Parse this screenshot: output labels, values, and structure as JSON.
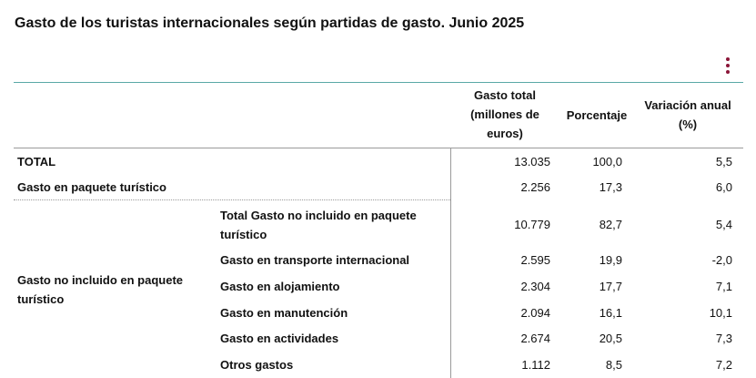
{
  "title": "Gasto de los turistas internacionales según partidas de gasto. Junio 2025",
  "menu_icon": "kebab-menu-icon",
  "accent_color": "#8b1538",
  "header": {
    "col_total": "Gasto total (millones de euros)",
    "col_pct": "Porcentaje",
    "col_var": "Variación anual (%)"
  },
  "rows": [
    {
      "label": "TOTAL",
      "total": "13.035",
      "pct": "100,0",
      "var": "5,5"
    },
    {
      "label": "Gasto en paquete turístico",
      "total": "2.256",
      "pct": "17,3",
      "var": "6,0"
    }
  ],
  "group": {
    "label": "Gasto no incluido en paquete turístico",
    "subrows": [
      {
        "label": "Total Gasto no incluido en paquete turístico",
        "total": "10.779",
        "pct": "82,7",
        "var": "5,4"
      },
      {
        "label": "Gasto en transporte internacional",
        "total": "2.595",
        "pct": "19,9",
        "var": "-2,0"
      },
      {
        "label": "Gasto en alojamiento",
        "total": "2.304",
        "pct": "17,7",
        "var": "7,1"
      },
      {
        "label": "Gasto en manutención",
        "total": "2.094",
        "pct": "16,1",
        "var": "10,1"
      },
      {
        "label": "Gasto en actividades",
        "total": "2.674",
        "pct": "20,5",
        "var": "7,3"
      },
      {
        "label": "Otros gastos",
        "total": "1.112",
        "pct": "8,5",
        "var": "7,2"
      }
    ]
  }
}
